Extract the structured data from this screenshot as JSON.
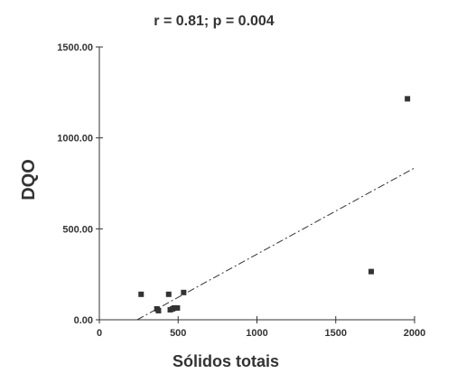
{
  "chart_data": {
    "type": "scatter",
    "title": "r = 0.81; p = 0.004",
    "xlabel": "Sólidos totais",
    "ylabel": "DQO",
    "xlim": [
      0,
      2000
    ],
    "ylim": [
      0,
      1500
    ],
    "x_ticks": [
      "0",
      "500",
      "1000",
      "1500",
      "2000"
    ],
    "y_ticks": [
      "0.00",
      "500.00",
      "1000.00",
      "1500.00"
    ],
    "points": [
      {
        "x": 265,
        "y": 140
      },
      {
        "x": 365,
        "y": 60
      },
      {
        "x": 375,
        "y": 50
      },
      {
        "x": 440,
        "y": 140
      },
      {
        "x": 450,
        "y": 55
      },
      {
        "x": 465,
        "y": 60
      },
      {
        "x": 475,
        "y": 65
      },
      {
        "x": 495,
        "y": 65
      },
      {
        "x": 535,
        "y": 150
      },
      {
        "x": 1725,
        "y": 265
      },
      {
        "x": 1955,
        "y": 1215
      }
    ],
    "trendline": {
      "style": "dash-dot",
      "x": [
        240,
        2000
      ],
      "y": [
        0,
        835
      ]
    },
    "grid": false,
    "colors": {
      "markers": "#333333",
      "axes": "#333333",
      "text": "#333333"
    }
  }
}
